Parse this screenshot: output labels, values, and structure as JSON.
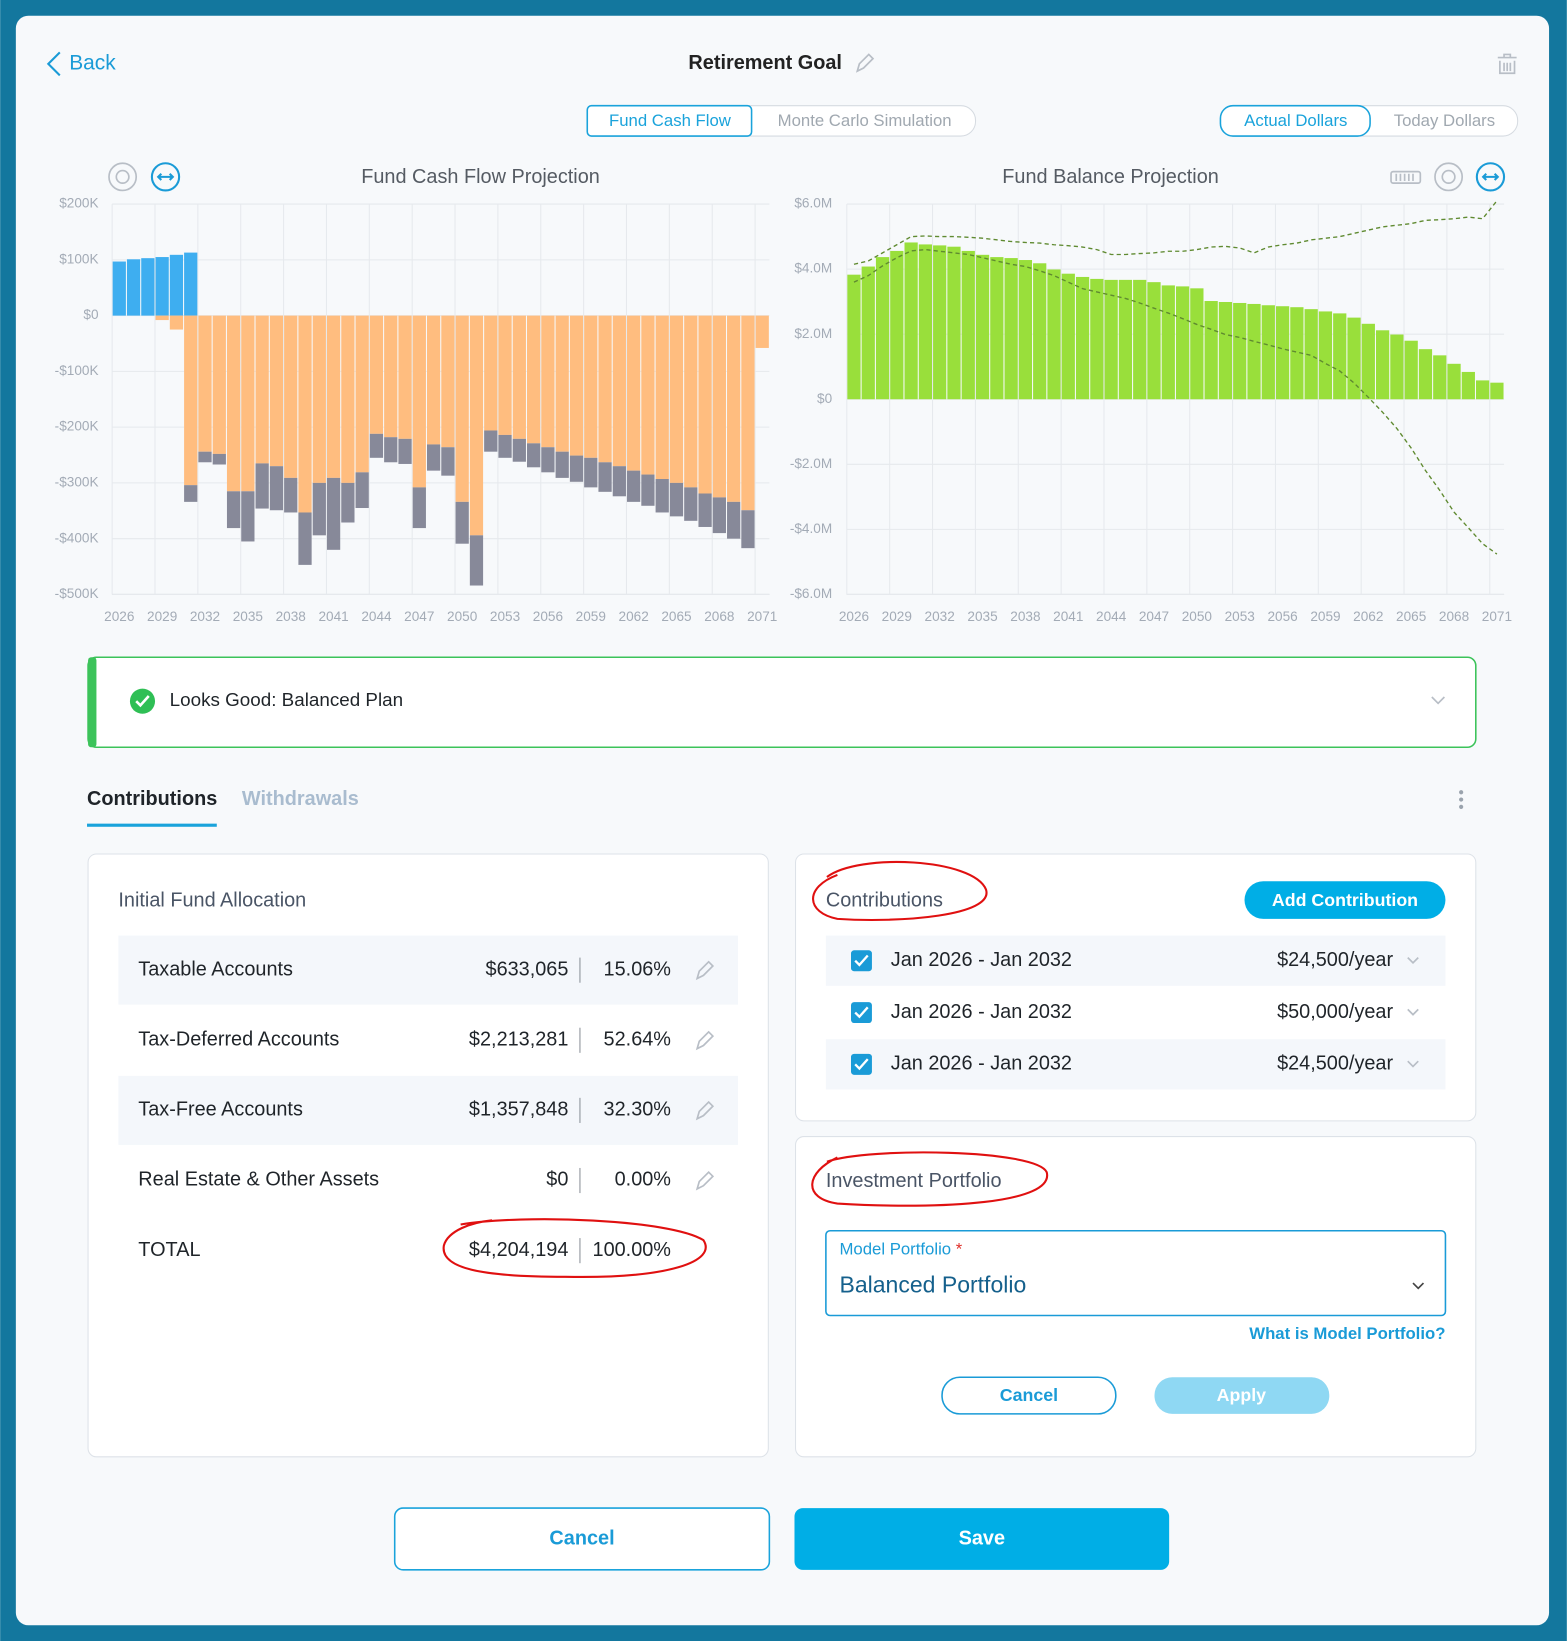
{
  "header": {
    "back": "Back",
    "title": "Retirement Goal"
  },
  "view_tabs": [
    "Fund Cash Flow",
    "Monte Carlo Simulation"
  ],
  "dollar_tabs": [
    "Actual Dollars",
    "Today Dollars"
  ],
  "chart_data": [
    {
      "type": "bar",
      "title": "Fund Cash Flow Projection",
      "stacked": true,
      "categories": [
        "2026",
        null,
        null,
        "2029",
        null,
        null,
        "2032",
        null,
        null,
        "2035",
        null,
        null,
        "2038",
        null,
        null,
        "2041",
        null,
        null,
        "2044",
        null,
        null,
        "2047",
        null,
        null,
        "2050",
        null,
        null,
        "2053",
        null,
        null,
        "2056",
        null,
        null,
        "2059",
        null,
        null,
        "2062",
        null,
        null,
        "2065",
        null,
        null,
        "2068",
        null,
        null,
        "2071"
      ],
      "series": [
        {
          "color": "#3eaef0",
          "values": [
            97,
            101,
            103,
            105,
            109,
            113,
            0,
            0,
            0,
            0,
            0,
            0,
            0,
            0,
            0,
            0,
            0,
            0,
            0,
            0,
            0,
            0,
            0,
            0,
            0,
            0,
            0,
            0,
            0,
            0,
            0,
            0,
            0,
            0,
            0,
            0,
            0,
            0,
            0,
            0,
            0,
            0,
            0,
            0,
            0,
            0
          ]
        },
        {
          "color": "#ffbd7f",
          "values": [
            0,
            0,
            0,
            -8,
            -25,
            -304,
            -244,
            -248,
            -315,
            -315,
            -265,
            -270,
            -291,
            -353,
            -300,
            -291,
            -300,
            -281,
            -212,
            -218,
            -221,
            -308,
            -231,
            -236,
            -334,
            -394,
            -206,
            -214,
            -221,
            -229,
            -236,
            -244,
            -251,
            -255,
            -263,
            -270,
            -278,
            -285,
            -293,
            -300,
            -308,
            -319,
            -326,
            -334,
            -349,
            -58
          ]
        },
        {
          "color": "#878999",
          "values": [
            0,
            0,
            0,
            0,
            0,
            -30,
            -19,
            -19,
            -66,
            -90,
            -81,
            -79,
            -62,
            -94,
            -94,
            -129,
            -71,
            -64,
            -43,
            -45,
            -45,
            -73,
            -47,
            -51,
            -75,
            -90,
            -38,
            -41,
            -41,
            -43,
            -45,
            -47,
            -47,
            -53,
            -53,
            -54,
            -56,
            -56,
            -60,
            -60,
            -60,
            -60,
            -64,
            -66,
            -68,
            0
          ]
        }
      ],
      "ylim": [
        -500,
        200
      ],
      "yticks": [
        {
          "value": -500,
          "label": "-$500K"
        },
        {
          "value": -400,
          "label": "-$400K"
        },
        {
          "value": -300,
          "label": "-$300K"
        },
        {
          "value": -200,
          "label": "-$200K"
        },
        {
          "value": -100,
          "label": "-$100K"
        },
        {
          "value": 0,
          "label": "$0"
        },
        {
          "value": 100,
          "label": "$100K"
        },
        {
          "value": 200,
          "label": "$200K"
        }
      ],
      "grid": true
    },
    {
      "type": "bar",
      "title": "Fund Balance Projection",
      "categories": [
        "2026",
        null,
        null,
        "2029",
        null,
        null,
        "2032",
        null,
        null,
        "2035",
        null,
        null,
        "2038",
        null,
        null,
        "2041",
        null,
        null,
        "2044",
        null,
        null,
        "2047",
        null,
        null,
        "2050",
        null,
        null,
        "2053",
        null,
        null,
        "2056",
        null,
        null,
        "2059",
        null,
        null,
        "2062",
        null,
        null,
        "2065",
        null,
        null,
        "2068",
        null,
        null,
        "2071"
      ],
      "series": [
        {
          "color": "#99df3b",
          "values": [
            3.83,
            4.08,
            4.37,
            4.56,
            4.82,
            4.76,
            4.73,
            4.69,
            4.56,
            4.44,
            4.37,
            4.34,
            4.28,
            4.18,
            3.99,
            3.86,
            3.76,
            3.7,
            3.67,
            3.67,
            3.67,
            3.6,
            3.5,
            3.47,
            3.41,
            3.02,
            2.99,
            2.96,
            2.93,
            2.89,
            2.86,
            2.83,
            2.77,
            2.7,
            2.64,
            2.51,
            2.32,
            2.12,
            1.99,
            1.8,
            1.54,
            1.35,
            1.09,
            0.84,
            0.58,
            0.51
          ]
        },
        {
          "type": "line",
          "dashed": true,
          "color": "#5f8a30",
          "values": [
            4.15,
            4.25,
            4.5,
            4.75,
            5.0,
            5.02,
            5.0,
            5.0,
            4.98,
            4.95,
            4.9,
            4.85,
            4.82,
            4.8,
            4.75,
            4.72,
            4.68,
            4.6,
            4.45,
            4.45,
            4.48,
            4.5,
            4.55,
            4.55,
            4.6,
            4.68,
            4.7,
            4.65,
            4.5,
            4.68,
            4.75,
            4.8,
            4.9,
            4.95,
            5.0,
            5.1,
            5.2,
            5.3,
            5.35,
            5.4,
            5.5,
            5.52,
            5.55,
            5.6,
            5.55,
            6.1
          ]
        },
        {
          "type": "line",
          "dashed": true,
          "color": "#5f8a30",
          "values": [
            3.6,
            3.8,
            4.1,
            4.35,
            4.56,
            4.6,
            4.55,
            4.5,
            4.45,
            4.35,
            4.25,
            4.15,
            4.08,
            3.95,
            3.8,
            3.6,
            3.4,
            3.3,
            3.2,
            3.1,
            2.96,
            2.8,
            2.65,
            2.48,
            2.3,
            2.15,
            1.99,
            1.9,
            1.78,
            1.67,
            1.55,
            1.45,
            1.35,
            1.1,
            0.87,
            0.5,
            0.06,
            -0.4,
            -0.9,
            -1.5,
            -2.19,
            -2.8,
            -3.47,
            -3.95,
            -4.44,
            -4.76
          ]
        }
      ],
      "ylim": [
        -6,
        6
      ],
      "yticks": [
        {
          "value": -6,
          "label": "-$6.0M"
        },
        {
          "value": -4,
          "label": "-$4.0M"
        },
        {
          "value": -2,
          "label": "-$2.0M"
        },
        {
          "value": 0,
          "label": "$0"
        },
        {
          "value": 2,
          "label": "$2.0M"
        },
        {
          "value": 4,
          "label": "$4.0M"
        },
        {
          "value": 6,
          "label": "$6.0M"
        }
      ],
      "grid": true
    }
  ],
  "status": "Looks Good: Balanced Plan",
  "section_tabs": [
    "Contributions",
    "Withdrawals"
  ],
  "allocation": {
    "title": "Initial Fund Allocation",
    "rows": [
      [
        "Taxable Accounts",
        "$633,065",
        "15.06%"
      ],
      [
        "Tax-Deferred Accounts",
        "$2,213,281",
        "52.64%"
      ],
      [
        "Tax-Free Accounts",
        "$1,357,848",
        "32.30%"
      ],
      [
        "Real Estate & Other Assets",
        "$0",
        "0.00%"
      ],
      [
        "TOTAL",
        "$4,204,194",
        "100.00%"
      ]
    ]
  },
  "contributions": {
    "title": "Contributions",
    "button": "Add Contribution",
    "items": [
      [
        "Jan 2026 - Jan 2032",
        "$24,500/year"
      ],
      [
        "Jan 2026 - Jan 2032",
        "$50,000/year"
      ],
      [
        "Jan 2026 - Jan 2032",
        "$24,500/year"
      ]
    ]
  },
  "portfolio": {
    "title": "Investment Portfolio",
    "field_label": "Model Portfolio",
    "required": "*",
    "value": "Balanced Portfolio",
    "link": "What is Model Portfolio?",
    "cancel": "Cancel",
    "apply": "Apply"
  },
  "footer": {
    "cancel": "Cancel",
    "save": "Save"
  }
}
